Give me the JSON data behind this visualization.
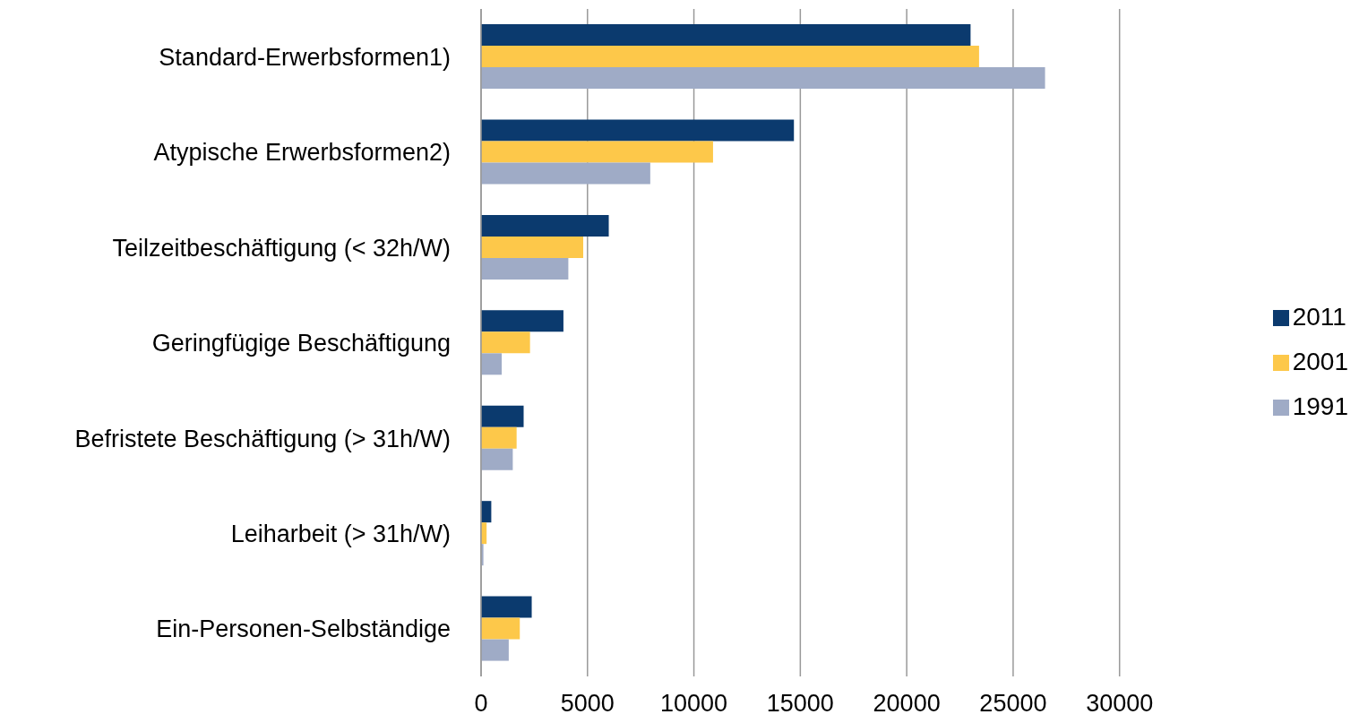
{
  "chart_data": {
    "type": "bar",
    "orientation": "horizontal",
    "categories": [
      "Standard-Erwerbsformen1)",
      "Atypische Erwerbsformen2)",
      "Teilzeitbeschäftigung (< 32h/W)",
      "Geringfügige Beschäftigung",
      "Befristete Beschäftigung (> 31h/W)",
      "Leiharbeit (> 31h/W)",
      "Ein-Personen-Selbständige"
    ],
    "series": [
      {
        "name": "2011",
        "color": "#0b3a6e",
        "values": [
          23000,
          14700,
          6000,
          3870,
          2000,
          480,
          2380
        ]
      },
      {
        "name": "2001",
        "color": "#fdc84a",
        "values": [
          23400,
          10900,
          4800,
          2300,
          1670,
          260,
          1820
        ]
      },
      {
        "name": "1991",
        "color": "#9fabc6",
        "values": [
          26500,
          7950,
          4100,
          970,
          1490,
          110,
          1300
        ]
      }
    ],
    "xlim": [
      0,
      30000
    ],
    "xticks": [
      0,
      5000,
      10000,
      15000,
      20000,
      25000,
      30000
    ],
    "grid": "x",
    "legend": "right"
  }
}
